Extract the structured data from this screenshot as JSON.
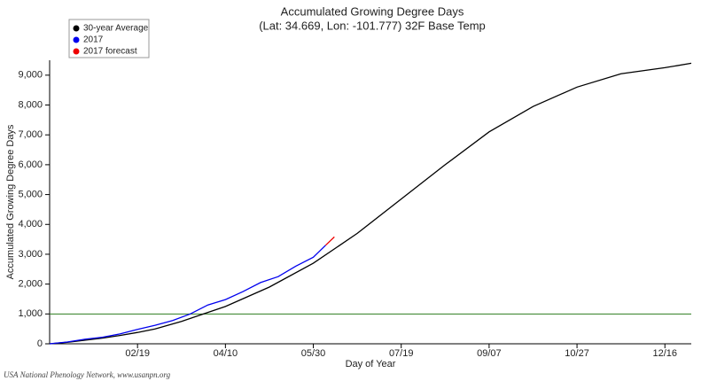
{
  "chart_data": {
    "type": "line",
    "title": "Accumulated Growing Degree Days",
    "subtitle": "(Lat: 34.669, Lon: -101.777) 32F Base Temp",
    "x_label": "Day of Year",
    "y_label": "Accumulated Growing Degree Days",
    "footer": "USA National Phenology Network, www.usanpn.org",
    "xlim": [
      0,
      365
    ],
    "ylim": [
      0,
      9500
    ],
    "xticks": [
      {
        "value": 50,
        "label": "02/19"
      },
      {
        "value": 100,
        "label": "04/10"
      },
      {
        "value": 150,
        "label": "05/30"
      },
      {
        "value": 200,
        "label": "07/19"
      },
      {
        "value": 250,
        "label": "09/07"
      },
      {
        "value": 300,
        "label": "10/27"
      },
      {
        "value": 350,
        "label": "12/16"
      }
    ],
    "yticks": [
      0,
      {
        "value": 1000,
        "label": "1,000"
      },
      {
        "value": 2000,
        "label": "2,000"
      },
      {
        "value": 3000,
        "label": "3,000"
      },
      {
        "value": 4000,
        "label": "4,000"
      },
      {
        "value": 5000,
        "label": "5,000"
      },
      {
        "value": 6000,
        "label": "6,000"
      },
      {
        "value": 7000,
        "label": "7,000"
      },
      {
        "value": 8000,
        "label": "8,000"
      },
      {
        "value": 9000,
        "label": "9,000"
      }
    ],
    "reference_line": {
      "value": 1000,
      "color": "#2e7d1f"
    },
    "legend": "top-left",
    "series": [
      {
        "name": "30-year Average",
        "color": "#000000",
        "x": [
          0,
          10,
          20,
          30,
          40,
          50,
          60,
          75,
          90,
          100,
          125,
          150,
          175,
          200,
          225,
          250,
          275,
          300,
          325,
          350,
          365
        ],
        "values": [
          0,
          50,
          120,
          190,
          280,
          380,
          500,
          750,
          1050,
          1250,
          1900,
          2700,
          3700,
          4850,
          6000,
          7100,
          7950,
          8600,
          9050,
          9250,
          9400
        ]
      },
      {
        "name": "2017",
        "color": "#0000ee",
        "x": [
          0,
          10,
          20,
          30,
          40,
          50,
          60,
          70,
          80,
          90,
          100,
          110,
          120,
          130,
          140,
          150,
          157
        ],
        "values": [
          0,
          60,
          150,
          220,
          330,
          480,
          620,
          780,
          1000,
          1300,
          1480,
          1750,
          2050,
          2250,
          2600,
          2900,
          3300
        ]
      },
      {
        "name": "2017 forecast",
        "color": "#ee0000",
        "x": [
          157,
          162
        ],
        "values": [
          3300,
          3580
        ]
      }
    ]
  }
}
